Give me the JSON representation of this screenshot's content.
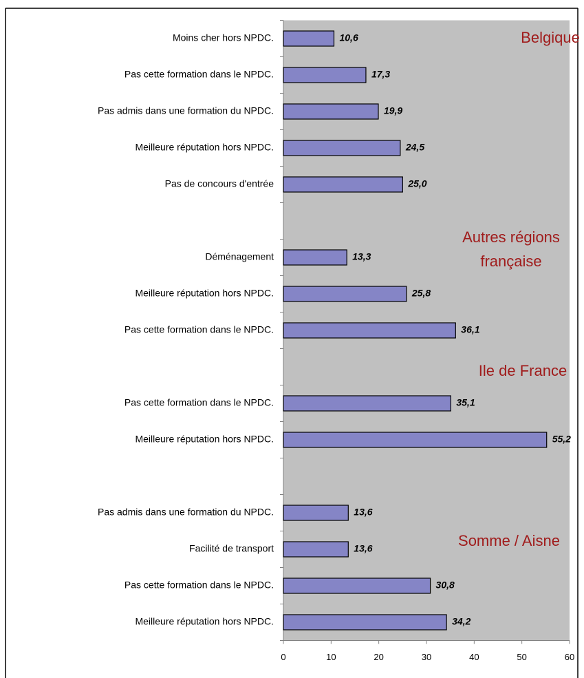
{
  "chart_data": {
    "type": "bar",
    "orientation": "horizontal",
    "categories": [
      "Moins cher hors NPDC.",
      "Pas cette formation dans le NPDC.",
      "Pas admis dans une formation du NPDC.",
      "Meilleure réputation hors NPDC.",
      "Pas de concours d'entrée",
      null,
      "Déménagement",
      "Meilleure réputation hors NPDC.",
      "Pas cette formation dans le NPDC.",
      null,
      "Pas cette formation dans le NPDC.",
      "Meilleure réputation hors NPDC.",
      null,
      "Pas admis dans une formation du NPDC.",
      "Facilité de transport",
      "Pas cette formation dans le NPDC.",
      "Meilleure réputation hors NPDC."
    ],
    "values": [
      10.6,
      17.3,
      19.9,
      24.5,
      25.0,
      null,
      13.3,
      25.8,
      36.1,
      null,
      35.1,
      55.2,
      null,
      13.6,
      13.6,
      30.8,
      34.2
    ],
    "value_labels": [
      "10,6",
      "17,3",
      "19,9",
      "24,5",
      "25,0",
      null,
      "13,3",
      "25,8",
      "36,1",
      null,
      "35,1",
      "55,2",
      null,
      "13,6",
      "13,6",
      "30,8",
      "34,2"
    ],
    "color": "#8585c6",
    "xlim": [
      0,
      60
    ],
    "xticks": [
      0,
      10,
      20,
      30,
      40,
      50,
      60
    ],
    "grid": false,
    "annotations": [
      {
        "lines": [
          "Belgique"
        ]
      },
      {
        "lines": [
          "Autres régions",
          "française"
        ]
      },
      {
        "lines": [
          "Ile de France"
        ]
      },
      {
        "lines": [
          "Somme / Aisne"
        ]
      }
    ]
  }
}
